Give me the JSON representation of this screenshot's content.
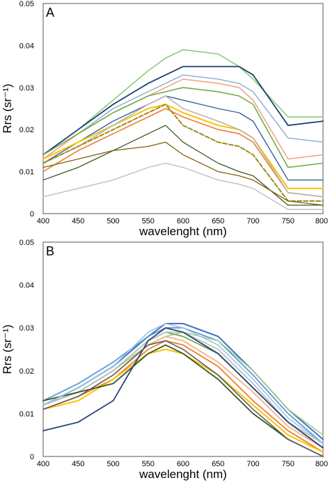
{
  "chart_data": [
    {
      "type": "line",
      "panel": "A",
      "xlabel": "wavelenght (nm)",
      "ylabel": "Rrs (sr⁻¹)",
      "xlim": [
        400,
        800
      ],
      "ylim": [
        0,
        0.05
      ],
      "xticks": [
        "400",
        "450",
        "500",
        "550",
        "600",
        "650",
        "700",
        "750",
        "800"
      ],
      "yticks": [
        "0",
        "0.01",
        "0.02",
        "0.03",
        "0.04",
        "0.05"
      ],
      "x": [
        400,
        450,
        500,
        550,
        575,
        600,
        650,
        680,
        700,
        750,
        800
      ],
      "series": [
        {
          "color": "#8cc97a",
          "width": 1.6,
          "values": [
            0.014,
            0.02,
            0.027,
            0.034,
            0.037,
            0.039,
            0.038,
            0.035,
            0.032,
            0.023,
            0.023
          ]
        },
        {
          "color": "#1f3f6e",
          "width": 1.8,
          "values": [
            0.014,
            0.02,
            0.026,
            0.031,
            0.033,
            0.035,
            0.035,
            0.035,
            0.033,
            0.021,
            0.022
          ]
        },
        {
          "color": "#8aa9d6",
          "width": 1.4,
          "values": [
            0.013,
            0.019,
            0.025,
            0.029,
            0.031,
            0.033,
            0.032,
            0.031,
            0.029,
            0.018,
            0.017
          ]
        },
        {
          "color": "#f4a582",
          "width": 1.6,
          "values": [
            0.013,
            0.019,
            0.024,
            0.028,
            0.03,
            0.032,
            0.031,
            0.03,
            0.027,
            0.013,
            0.014
          ]
        },
        {
          "color": "#70ad47",
          "width": 1.6,
          "values": [
            0.014,
            0.019,
            0.024,
            0.028,
            0.029,
            0.03,
            0.029,
            0.028,
            0.026,
            0.011,
            0.012
          ]
        },
        {
          "color": "#3a5f9a",
          "width": 1.4,
          "values": [
            0.012,
            0.017,
            0.022,
            0.026,
            0.028,
            0.027,
            0.025,
            0.024,
            0.022,
            0.008,
            0.008
          ]
        },
        {
          "color": "#ffc000",
          "width": 2.0,
          "values": [
            0.013,
            0.017,
            0.021,
            0.025,
            0.026,
            0.024,
            0.021,
            0.02,
            0.018,
            0.006,
            0.006
          ]
        },
        {
          "color": "#ed7d31",
          "width": 1.6,
          "values": [
            0.01,
            0.015,
            0.019,
            0.023,
            0.025,
            0.023,
            0.02,
            0.019,
            0.017,
            0.005,
            0.004
          ]
        },
        {
          "color": "#b5b5b5",
          "width": 1.6,
          "values": [
            0.012,
            0.016,
            0.021,
            0.026,
            0.028,
            0.025,
            0.022,
            0.02,
            0.018,
            0.005,
            0.004
          ]
        },
        {
          "color": "#9c8a1c",
          "width": 2.0,
          "dash": "6,3",
          "values": [
            0.012,
            0.016,
            0.02,
            0.024,
            0.026,
            0.021,
            0.017,
            0.016,
            0.014,
            0.003,
            0.003
          ]
        },
        {
          "color": "#375623",
          "width": 1.3,
          "values": [
            0.008,
            0.011,
            0.015,
            0.019,
            0.021,
            0.017,
            0.012,
            0.01,
            0.009,
            0.002,
            0.002
          ]
        },
        {
          "color": "#7f6000",
          "width": 1.3,
          "values": [
            0.011,
            0.013,
            0.015,
            0.016,
            0.017,
            0.014,
            0.01,
            0.009,
            0.008,
            0.003,
            0.002
          ]
        },
        {
          "color": "#bfbfbf",
          "width": 1.4,
          "values": [
            0.004,
            0.006,
            0.008,
            0.011,
            0.012,
            0.011,
            0.008,
            0.007,
            0.006,
            0.001,
            0.001
          ]
        }
      ]
    },
    {
      "type": "line",
      "panel": "B",
      "xlabel": "wavelenght (nm)",
      "ylabel": "Rrs (sr⁻¹)",
      "xlim": [
        400,
        800
      ],
      "ylim": [
        0,
        0.05
      ],
      "xticks": [
        "400",
        "450",
        "500",
        "550",
        "600",
        "650",
        "700",
        "750",
        "800"
      ],
      "yticks": [
        "0",
        "0.01",
        "0.02",
        "0.03",
        "0.04",
        "0.05"
      ],
      "x": [
        400,
        450,
        500,
        550,
        575,
        600,
        650,
        700,
        750,
        800
      ],
      "series": [
        {
          "color": "#4472c4",
          "width": 2.0,
          "values": [
            0.012,
            0.016,
            0.021,
            0.028,
            0.031,
            0.031,
            0.028,
            0.02,
            0.011,
            0.004
          ]
        },
        {
          "color": "#5b9bd5",
          "width": 1.8,
          "values": [
            0.013,
            0.017,
            0.022,
            0.028,
            0.03,
            0.03,
            0.027,
            0.019,
            0.01,
            0.003
          ]
        },
        {
          "color": "#a9d18e",
          "width": 1.8,
          "values": [
            0.012,
            0.015,
            0.02,
            0.026,
            0.028,
            0.029,
            0.027,
            0.02,
            0.011,
            0.005
          ]
        },
        {
          "color": "#70ad47",
          "width": 1.8,
          "values": [
            0.012,
            0.015,
            0.02,
            0.027,
            0.029,
            0.028,
            0.024,
            0.016,
            0.008,
            0.002
          ]
        },
        {
          "color": "#f4b183",
          "width": 1.8,
          "values": [
            0.011,
            0.014,
            0.019,
            0.026,
            0.028,
            0.027,
            0.022,
            0.015,
            0.007,
            0.002
          ]
        },
        {
          "color": "#ed7d31",
          "width": 1.8,
          "values": [
            0.011,
            0.014,
            0.018,
            0.025,
            0.027,
            0.026,
            0.021,
            0.013,
            0.006,
            0.001
          ]
        },
        {
          "color": "#ffc000",
          "width": 2.0,
          "values": [
            0.011,
            0.013,
            0.018,
            0.024,
            0.025,
            0.024,
            0.019,
            0.012,
            0.005,
            0.001
          ]
        },
        {
          "color": "#bfbfbf",
          "width": 1.8,
          "values": [
            0.012,
            0.015,
            0.02,
            0.027,
            0.029,
            0.029,
            0.025,
            0.017,
            0.008,
            0.003
          ]
        },
        {
          "color": "#375623",
          "width": 1.8,
          "values": [
            0.013,
            0.015,
            0.017,
            0.024,
            0.026,
            0.024,
            0.018,
            0.01,
            0.004,
            0.0
          ]
        },
        {
          "color": "#264478",
          "width": 1.8,
          "values": [
            0.006,
            0.008,
            0.013,
            0.027,
            0.03,
            0.029,
            0.024,
            0.016,
            0.008,
            0.002
          ]
        },
        {
          "color": "#5d5d5d",
          "width": 1.6,
          "values": [
            0.011,
            0.014,
            0.019,
            0.026,
            0.027,
            0.025,
            0.019,
            0.011,
            0.004,
            0.0
          ]
        },
        {
          "color": "#9dc3e6",
          "width": 1.6,
          "values": [
            0.012,
            0.016,
            0.021,
            0.029,
            0.031,
            0.03,
            0.026,
            0.018,
            0.009,
            0.003
          ]
        }
      ]
    }
  ]
}
